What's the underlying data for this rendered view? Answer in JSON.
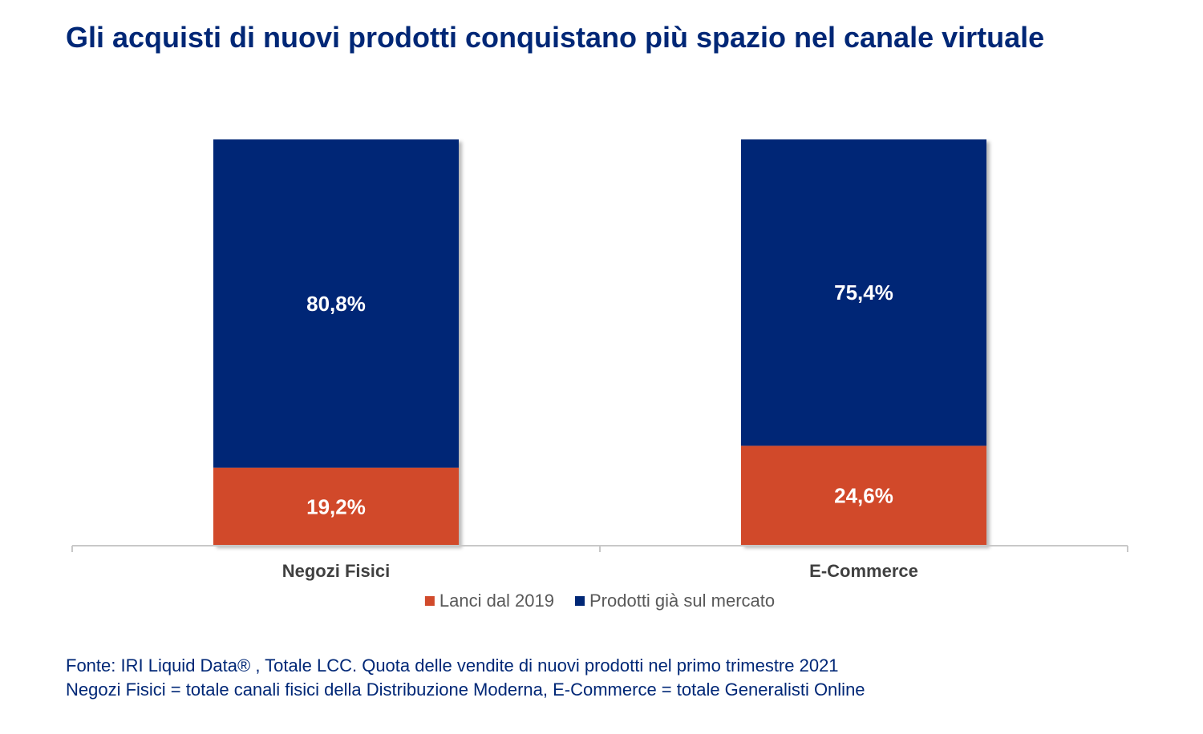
{
  "title": "Gli acquisti di nuovi prodotti conquistano più spazio nel canale virtuale",
  "chart_data": {
    "type": "bar",
    "stacked": true,
    "percent_stacked": true,
    "categories": [
      "Negozi Fisici",
      "E-Commerce"
    ],
    "series": [
      {
        "name": "Lanci dal 2019",
        "values": [
          19.2,
          24.6
        ],
        "labels": [
          "19,2%",
          "24,6%"
        ],
        "color": "#d14a2b"
      },
      {
        "name": "Prodotti già sul mercato",
        "values": [
          80.8,
          75.4
        ],
        "labels": [
          "80,8%",
          "75,4%"
        ],
        "color": "#002776"
      }
    ],
    "ylim": [
      0,
      100
    ],
    "xlabel": "",
    "ylabel": "",
    "legend": "bottom",
    "grid": false
  },
  "footer": {
    "line1": "Fonte: IRI Liquid Data® , Totale LCC. Quota delle vendite di nuovi prodotti nel primo trimestre 2021",
    "line2": "Negozi Fisici = totale canali fisici della Distribuzione Moderna, E-Commerce = totale Generalisti Online"
  }
}
